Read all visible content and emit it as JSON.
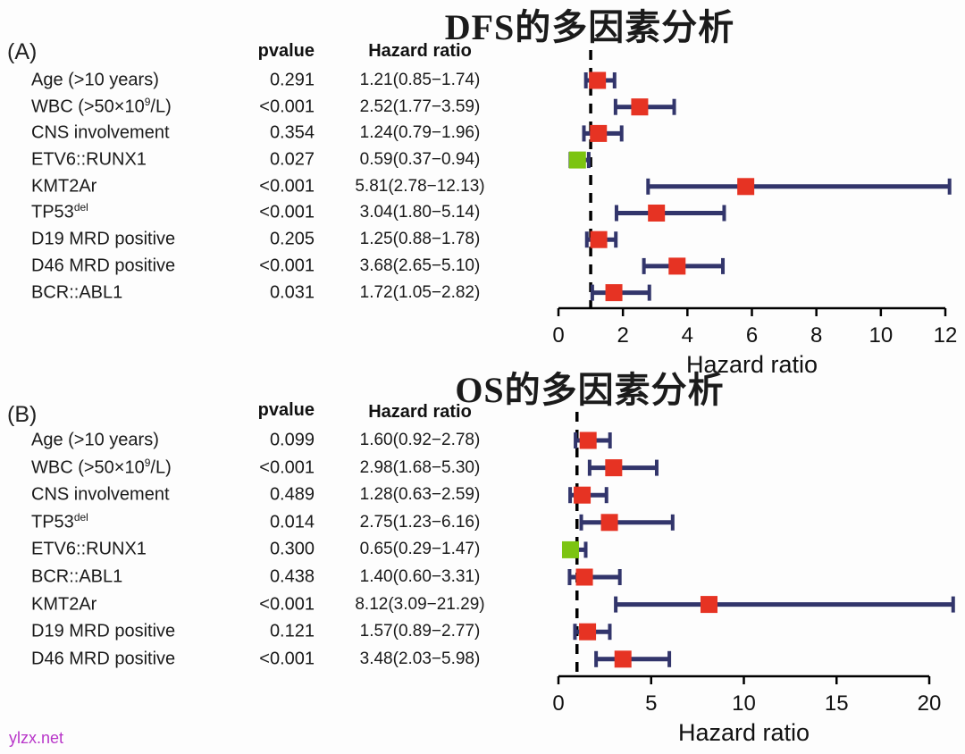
{
  "figure": {
    "watermark": "ylzx.net"
  },
  "colors": {
    "marker_red": "#e63323",
    "marker_green": "#7cc411",
    "whisker": "#32356b",
    "axis": "#000000",
    "text": "#111111",
    "watermark": "#b836c9"
  },
  "chart_data": [
    {
      "type": "scatter",
      "subtype": "forest-plot",
      "panel_label": "(A)",
      "title": "DFS的多因素分析",
      "columns": {
        "pvalue": "pvalue",
        "hazard_ratio": "Hazard ratio"
      },
      "xlabel": "Hazard ratio",
      "xlim": [
        0,
        12.2
      ],
      "xticks": [
        0,
        2,
        4,
        6,
        8,
        10,
        12
      ],
      "ref_line": 1,
      "legend": "none",
      "grid": false,
      "rows": [
        {
          "label": "Age (>10 years)",
          "label_sup": "",
          "label_after": "",
          "pvalue": "0.291",
          "hr_text": "1.21(0.85−1.74)",
          "hr": 1.21,
          "ci_low": 0.85,
          "ci_high": 1.74,
          "marker": "red"
        },
        {
          "label": "WBC (>50×10",
          "label_sup": "9",
          "label_after": "/L)",
          "pvalue": "<0.001",
          "hr_text": "2.52(1.77−3.59)",
          "hr": 2.52,
          "ci_low": 1.77,
          "ci_high": 3.59,
          "marker": "red"
        },
        {
          "label": "CNS involvement",
          "label_sup": "",
          "label_after": "",
          "pvalue": "0.354",
          "hr_text": "1.24(0.79−1.96)",
          "hr": 1.24,
          "ci_low": 0.79,
          "ci_high": 1.96,
          "marker": "red"
        },
        {
          "label": "ETV6::RUNX1",
          "label_sup": "",
          "label_after": "",
          "pvalue": "0.027",
          "hr_text": "0.59(0.37−0.94)",
          "hr": 0.59,
          "ci_low": 0.37,
          "ci_high": 0.94,
          "marker": "green"
        },
        {
          "label": "KMT2Ar",
          "label_sup": "",
          "label_after": "",
          "pvalue": "<0.001",
          "hr_text": "5.81(2.78−12.13)",
          "hr": 5.81,
          "ci_low": 2.78,
          "ci_high": 12.13,
          "marker": "red"
        },
        {
          "label": "TP53",
          "label_sup": "del",
          "label_after": "",
          "pvalue": "<0.001",
          "hr_text": "3.04(1.80−5.14)",
          "hr": 3.04,
          "ci_low": 1.8,
          "ci_high": 5.14,
          "marker": "red"
        },
        {
          "label": "D19 MRD positive",
          "label_sup": "",
          "label_after": "",
          "pvalue": "0.205",
          "hr_text": "1.25(0.88−1.78)",
          "hr": 1.25,
          "ci_low": 0.88,
          "ci_high": 1.78,
          "marker": "red"
        },
        {
          "label": "D46 MRD positive",
          "label_sup": "",
          "label_after": "",
          "pvalue": "<0.001",
          "hr_text": "3.68(2.65−5.10)",
          "hr": 3.68,
          "ci_low": 2.65,
          "ci_high": 5.1,
          "marker": "red"
        },
        {
          "label": "BCR::ABL1",
          "label_sup": "",
          "label_after": "",
          "pvalue": "0.031",
          "hr_text": "1.72(1.05−2.82)",
          "hr": 1.72,
          "ci_low": 1.05,
          "ci_high": 2.82,
          "marker": "red"
        }
      ]
    },
    {
      "type": "scatter",
      "subtype": "forest-plot",
      "panel_label": "(B)",
      "title": "OS的多因素分析",
      "columns": {
        "pvalue": "pvalue",
        "hazard_ratio": "Hazard ratio"
      },
      "xlabel": "Hazard ratio",
      "xlim": [
        0,
        21.4
      ],
      "xticks": [
        0,
        5,
        10,
        15,
        20
      ],
      "ref_line": 1,
      "legend": "none",
      "grid": false,
      "rows": [
        {
          "label": "Age (>10 years)",
          "label_sup": "",
          "label_after": "",
          "pvalue": "0.099",
          "hr_text": "1.60(0.92−2.78)",
          "hr": 1.6,
          "ci_low": 0.92,
          "ci_high": 2.78,
          "marker": "red"
        },
        {
          "label": "WBC (>50×10",
          "label_sup": "9",
          "label_after": "/L)",
          "pvalue": "<0.001",
          "hr_text": "2.98(1.68−5.30)",
          "hr": 2.98,
          "ci_low": 1.68,
          "ci_high": 5.3,
          "marker": "red"
        },
        {
          "label": "CNS involvement",
          "label_sup": "",
          "label_after": "",
          "pvalue": "0.489",
          "hr_text": "1.28(0.63−2.59)",
          "hr": 1.28,
          "ci_low": 0.63,
          "ci_high": 2.59,
          "marker": "red"
        },
        {
          "label": "TP53",
          "label_sup": "del",
          "label_after": "",
          "pvalue": "0.014",
          "hr_text": "2.75(1.23−6.16)",
          "hr": 2.75,
          "ci_low": 1.23,
          "ci_high": 6.16,
          "marker": "red"
        },
        {
          "label": "ETV6::RUNX1",
          "label_sup": "",
          "label_after": "",
          "pvalue": "0.300",
          "hr_text": "0.65(0.29−1.47)",
          "hr": 0.65,
          "ci_low": 0.29,
          "ci_high": 1.47,
          "marker": "green"
        },
        {
          "label": "BCR::ABL1",
          "label_sup": "",
          "label_after": "",
          "pvalue": "0.438",
          "hr_text": "1.40(0.60−3.31)",
          "hr": 1.4,
          "ci_low": 0.6,
          "ci_high": 3.31,
          "marker": "red"
        },
        {
          "label": "KMT2Ar",
          "label_sup": "",
          "label_after": "",
          "pvalue": "<0.001",
          "hr_text": "8.12(3.09−21.29)",
          "hr": 8.12,
          "ci_low": 3.09,
          "ci_high": 21.29,
          "marker": "red"
        },
        {
          "label": "D19 MRD positive",
          "label_sup": "",
          "label_after": "",
          "pvalue": "0.121",
          "hr_text": "1.57(0.89−2.77)",
          "hr": 1.57,
          "ci_low": 0.89,
          "ci_high": 2.77,
          "marker": "red"
        },
        {
          "label": "D46 MRD positive",
          "label_sup": "",
          "label_after": "",
          "pvalue": "<0.001",
          "hr_text": "3.48(2.03−5.98)",
          "hr": 3.48,
          "ci_low": 2.03,
          "ci_high": 5.98,
          "marker": "red"
        }
      ]
    }
  ]
}
